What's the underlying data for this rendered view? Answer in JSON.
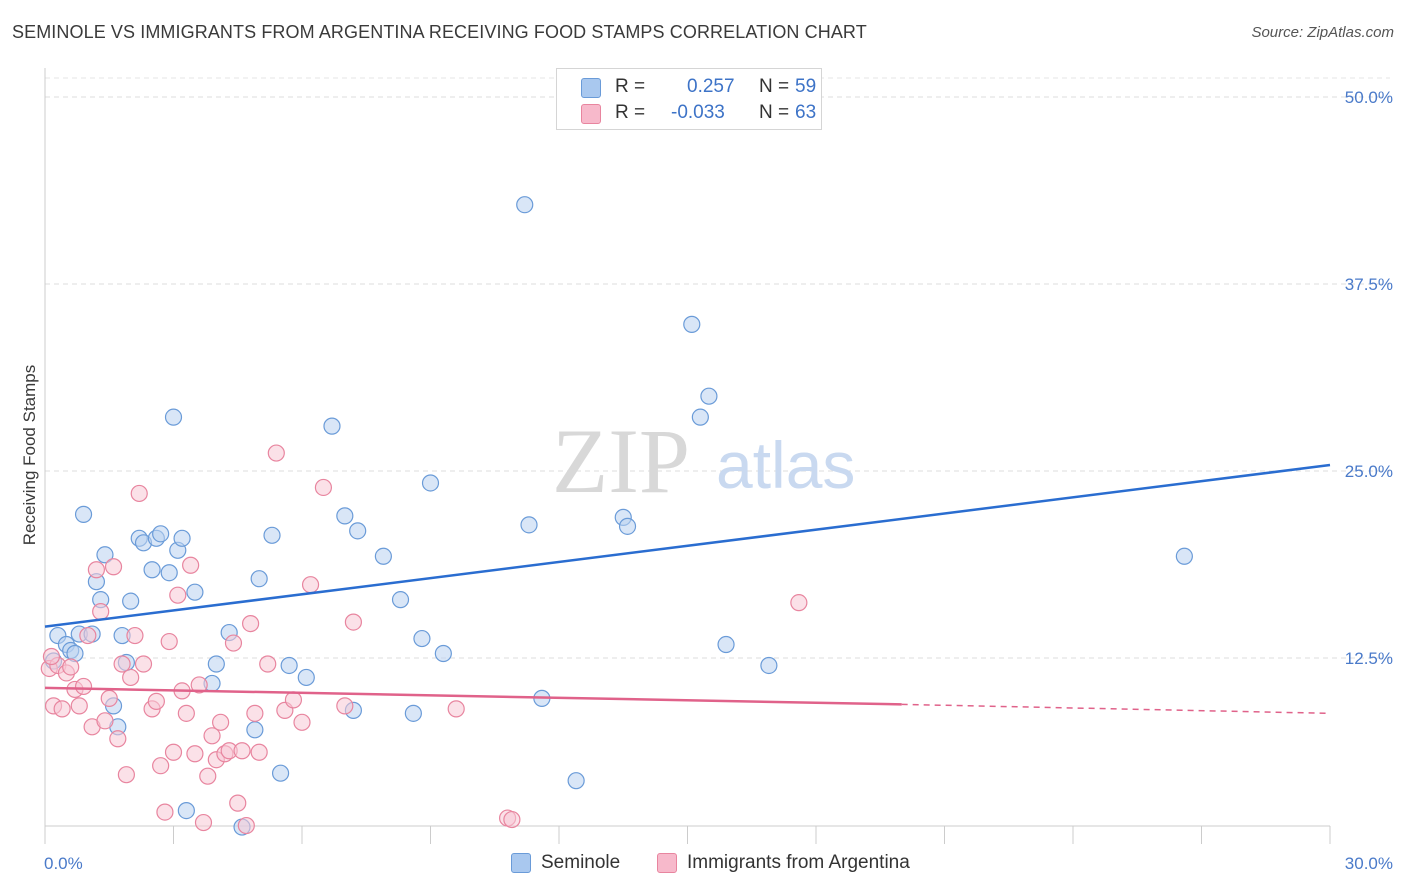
{
  "title": "SEMINOLE VS IMMIGRANTS FROM ARGENTINA RECEIVING FOOD STAMPS CORRELATION CHART",
  "source": "Source: ZipAtlas.com",
  "watermark": {
    "zip": "ZIP",
    "atlas": "atlas"
  },
  "legend_top": {
    "rows": [
      {
        "r_label": "R =",
        "r_value": "0.257",
        "n_label": "N =",
        "n_value": "59",
        "color": "#a9c8ef",
        "border": "#6a9bd8"
      },
      {
        "r_label": "R =",
        "r_value": "-0.033",
        "n_label": "N =",
        "n_value": "63",
        "color": "#f7b9cb",
        "border": "#e8859f"
      }
    ]
  },
  "legend_bottom": [
    {
      "label": "Seminole",
      "color": "#a9c8ef",
      "border": "#6a9bd8"
    },
    {
      "label": "Immigrants from Argentina",
      "color": "#f7b9cb",
      "border": "#e8859f"
    }
  ],
  "chart_data": {
    "type": "scatter",
    "title": "SEMINOLE VS IMMIGRANTS FROM ARGENTINA RECEIVING FOOD STAMPS CORRELATION CHART",
    "xlabel": "",
    "ylabel": "Receiving Food Stamps",
    "xlim": [
      0,
      30
    ],
    "ylim": [
      0,
      52
    ],
    "x_ticks": [
      "0.0%",
      "30.0%"
    ],
    "y_ticks": [
      {
        "value": 12.5,
        "label": "12.5%"
      },
      {
        "value": 25,
        "label": "25.0%"
      },
      {
        "value": 37.5,
        "label": "37.5%"
      },
      {
        "value": 50,
        "label": "50.0%"
      }
    ],
    "grid": true,
    "legend": "bottom-center",
    "series": [
      {
        "name": "Seminole",
        "color": "#6a9bd8",
        "fill": "#b9d2f1",
        "trend": {
          "x0": 0,
          "y0": 14.6,
          "x1": 30,
          "y1": 25.4,
          "style": "solid",
          "color": "#2a6dd0"
        },
        "points": [
          [
            0.2,
            12.3
          ],
          [
            0.3,
            14.0
          ],
          [
            0.5,
            13.4
          ],
          [
            0.6,
            13.0
          ],
          [
            0.7,
            12.8
          ],
          [
            0.8,
            14.1
          ],
          [
            0.9,
            22.1
          ],
          [
            1.1,
            14.1
          ],
          [
            1.2,
            17.6
          ],
          [
            1.3,
            16.4
          ],
          [
            1.4,
            19.4
          ],
          [
            1.6,
            9.3
          ],
          [
            1.7,
            7.9
          ],
          [
            1.8,
            14.0
          ],
          [
            1.9,
            12.2
          ],
          [
            2.0,
            16.3
          ],
          [
            2.2,
            20.5
          ],
          [
            2.3,
            20.2
          ],
          [
            2.5,
            18.4
          ],
          [
            2.6,
            20.5
          ],
          [
            2.7,
            20.8
          ],
          [
            2.9,
            18.2
          ],
          [
            3.0,
            28.6
          ],
          [
            3.1,
            19.7
          ],
          [
            3.2,
            20.5
          ],
          [
            3.3,
            2.3
          ],
          [
            3.5,
            16.9
          ],
          [
            3.9,
            10.8
          ],
          [
            4.0,
            12.1
          ],
          [
            4.3,
            14.2
          ],
          [
            4.6,
            1.2
          ],
          [
            4.9,
            7.7
          ],
          [
            5.0,
            17.8
          ],
          [
            5.3,
            20.7
          ],
          [
            5.5,
            4.8
          ],
          [
            5.7,
            12.0
          ],
          [
            6.1,
            11.2
          ],
          [
            6.7,
            28.0
          ],
          [
            7.0,
            22.0
          ],
          [
            7.2,
            9.0
          ],
          [
            7.3,
            21.0
          ],
          [
            7.9,
            19.3
          ],
          [
            8.3,
            16.4
          ],
          [
            8.6,
            8.8
          ],
          [
            8.8,
            13.8
          ],
          [
            9.0,
            24.2
          ],
          [
            9.3,
            12.8
          ],
          [
            11.2,
            42.8
          ],
          [
            11.3,
            21.4
          ],
          [
            11.6,
            9.8
          ],
          [
            12.4,
            4.3
          ],
          [
            13.5,
            21.9
          ],
          [
            13.6,
            21.3
          ],
          [
            15.1,
            34.8
          ],
          [
            15.3,
            28.6
          ],
          [
            15.5,
            30.0
          ],
          [
            15.9,
            13.4
          ],
          [
            16.9,
            12.0
          ],
          [
            26.6,
            19.3
          ]
        ]
      },
      {
        "name": "Immigrants from Argentina",
        "color": "#e8859f",
        "fill": "#f8c9d6",
        "trend": {
          "x0": 0,
          "y0": 10.5,
          "x1": 20,
          "y1": 9.4,
          "dashed_to_x": 30,
          "dashed_to_y": 8.8,
          "style": "solid-then-dashed",
          "color": "#e0628a"
        },
        "points": [
          [
            0.1,
            11.8
          ],
          [
            0.2,
            9.3
          ],
          [
            0.3,
            12.0
          ],
          [
            0.4,
            9.1
          ],
          [
            0.5,
            11.5
          ],
          [
            0.6,
            11.9
          ],
          [
            0.7,
            10.4
          ],
          [
            0.8,
            9.3
          ],
          [
            0.9,
            10.6
          ],
          [
            1.0,
            14.0
          ],
          [
            1.1,
            7.9
          ],
          [
            1.2,
            18.4
          ],
          [
            1.3,
            15.6
          ],
          [
            1.4,
            8.3
          ],
          [
            1.5,
            9.8
          ],
          [
            1.6,
            18.6
          ],
          [
            1.7,
            7.1
          ],
          [
            1.8,
            12.1
          ],
          [
            1.9,
            4.7
          ],
          [
            2.0,
            11.2
          ],
          [
            2.1,
            14.0
          ],
          [
            2.2,
            23.5
          ],
          [
            2.3,
            12.1
          ],
          [
            2.5,
            9.1
          ],
          [
            2.6,
            9.6
          ],
          [
            2.7,
            5.3
          ],
          [
            2.8,
            2.2
          ],
          [
            2.9,
            13.6
          ],
          [
            3.0,
            6.2
          ],
          [
            3.1,
            16.7
          ],
          [
            3.2,
            10.3
          ],
          [
            3.3,
            8.8
          ],
          [
            3.4,
            18.7
          ],
          [
            3.5,
            6.1
          ],
          [
            3.6,
            10.7
          ],
          [
            3.7,
            1.5
          ],
          [
            3.8,
            4.6
          ],
          [
            3.9,
            7.3
          ],
          [
            4.0,
            5.7
          ],
          [
            4.1,
            8.2
          ],
          [
            4.2,
            6.1
          ],
          [
            4.3,
            6.3
          ],
          [
            4.4,
            13.5
          ],
          [
            4.5,
            2.8
          ],
          [
            4.6,
            6.3
          ],
          [
            4.7,
            1.3
          ],
          [
            4.8,
            14.8
          ],
          [
            4.9,
            8.8
          ],
          [
            5.0,
            6.2
          ],
          [
            5.2,
            12.1
          ],
          [
            5.4,
            26.2
          ],
          [
            5.6,
            9.0
          ],
          [
            5.8,
            9.7
          ],
          [
            6.0,
            8.2
          ],
          [
            6.2,
            17.4
          ],
          [
            6.5,
            23.9
          ],
          [
            7.0,
            9.3
          ],
          [
            7.2,
            14.9
          ],
          [
            9.6,
            9.1
          ],
          [
            10.8,
            1.8
          ],
          [
            10.9,
            1.7
          ],
          [
            17.6,
            16.2
          ],
          [
            0.15,
            12.6
          ]
        ]
      }
    ]
  }
}
